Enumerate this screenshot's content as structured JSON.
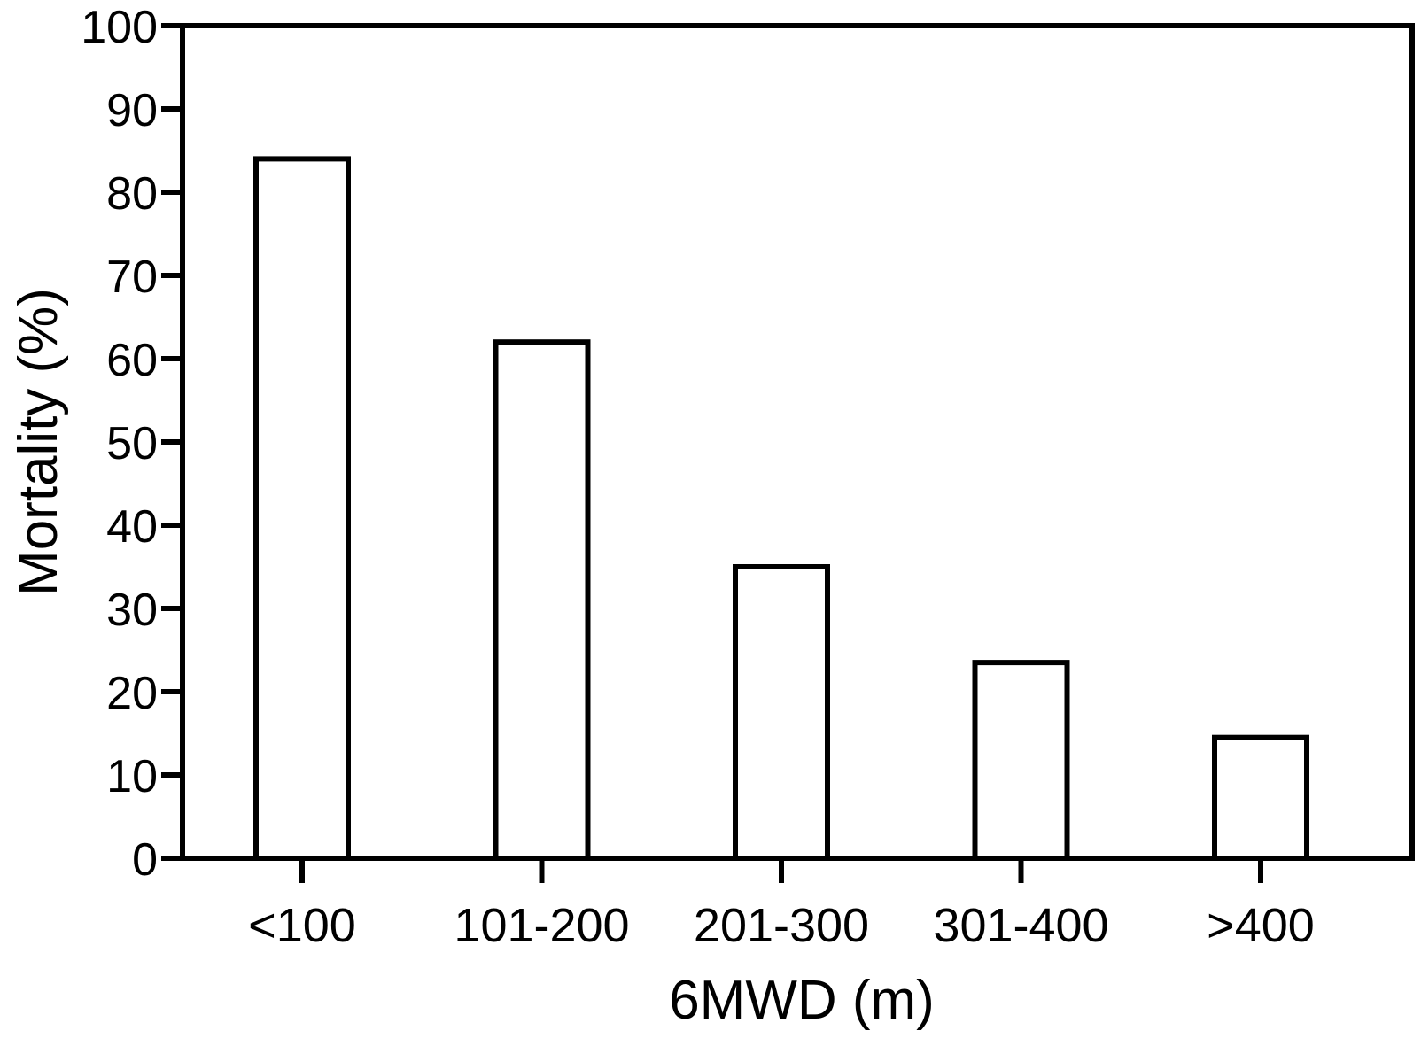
{
  "chart_data": {
    "type": "bar",
    "categories": [
      "<100",
      "101-200",
      "201-300",
      "301-400",
      ">400"
    ],
    "values": [
      84,
      62,
      35,
      23.5,
      14.5
    ],
    "xlabel": "6MWD (m)",
    "ylabel": "Mortality (%)",
    "ylim": [
      0,
      100
    ],
    "yticks": [
      0,
      10,
      20,
      30,
      40,
      50,
      60,
      70,
      80,
      90,
      100
    ],
    "grid": false,
    "bar_fill": "#ffffff",
    "bar_stroke": "#000000"
  }
}
